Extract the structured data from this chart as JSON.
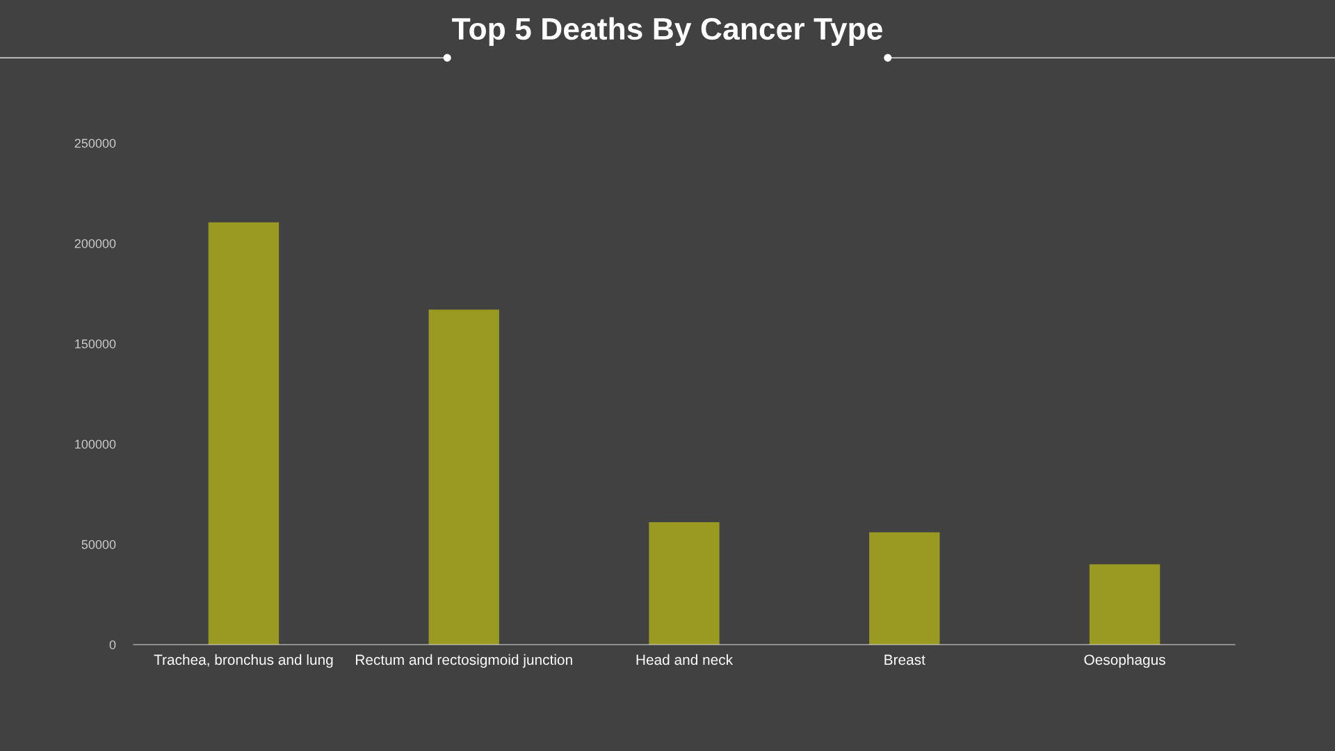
{
  "chart_data": {
    "type": "bar",
    "title": "Top 5 Deaths By Cancer Type",
    "categories": [
      "Trachea, bronchus and lung",
      "Rectum and rectosigmoid junction",
      "Head and neck",
      "Breast",
      "Oesophagus"
    ],
    "values": [
      210500,
      167000,
      61000,
      56000,
      40000
    ],
    "color": "#9a9a22",
    "ylim": [
      0,
      250000
    ],
    "yticks": [
      0,
      50000,
      100000,
      150000,
      200000,
      250000
    ],
    "grid": false
  }
}
